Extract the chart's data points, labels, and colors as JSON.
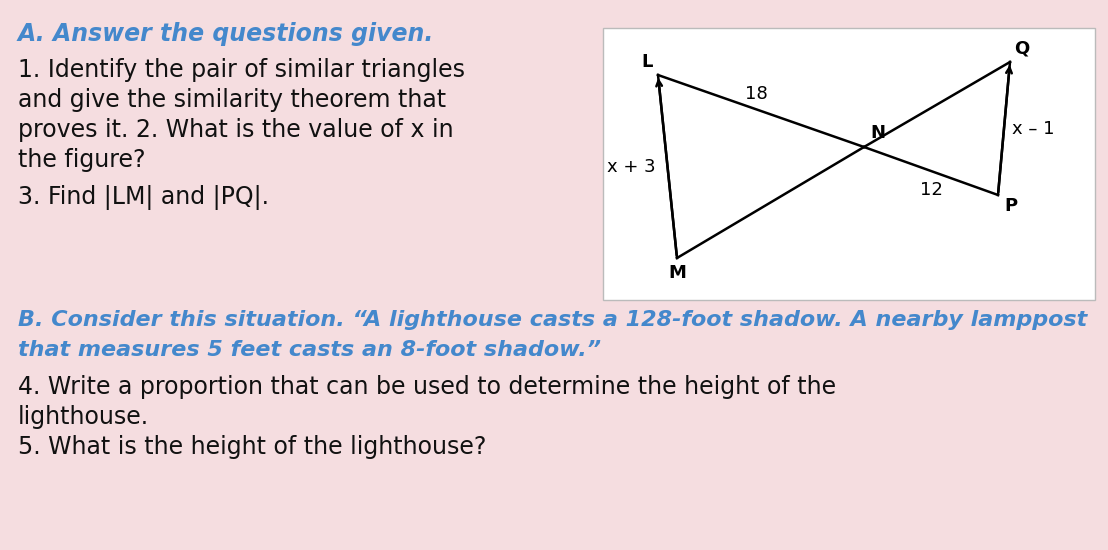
{
  "bg_color": "#f5dde0",
  "diagram_bg": "#ffffff",
  "title_A": "A. Answer the questions given.",
  "title_color": "#4488cc",
  "section_B_line1": "B. Consider this situation. “A lighthouse casts a 128-foot shadow. A nearby lamppost",
  "section_B_line2": "that measures 5 feet casts an 8-foot shadow.”",
  "q1_line1": "1. Identify the pair of similar triangles",
  "q1_line2": "and give the similarity theorem that",
  "q1_line3": "proves it. 2. What is the value of x in",
  "q1_line4": "the figure?",
  "q3_text": "3. Find |LM| and |PQ|.",
  "q4_line1": "4. Write a proportion that can be used to determine the height of the",
  "q4_line2": "lighthouse.",
  "q5_text": "5. What is the height of the lighthouse?",
  "label_18": "18",
  "label_xm1": "x – 1",
  "label_xp3": "x + 3",
  "label_12": "12",
  "label_L": "L",
  "label_M": "M",
  "label_N": "N",
  "label_Q": "Q",
  "label_P": "P",
  "title_fs": 17,
  "body_fs": 17,
  "diag_fs": 13,
  "italic_blue_fs": 16
}
